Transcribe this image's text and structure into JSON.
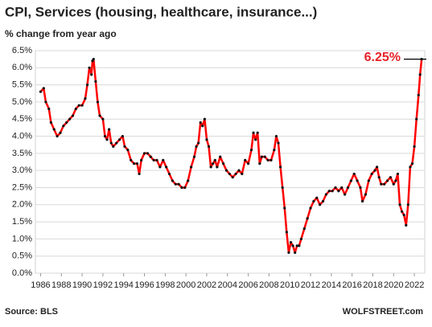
{
  "chart_data": {
    "type": "line",
    "title": "CPI, Services (housing, healthcare, insurance...)",
    "subtitle": "% change from year ago",
    "source": "Source: BLS",
    "watermark": "WOLFSTREET.com",
    "annotation": {
      "text": "6.25%",
      "value": 6.25
    },
    "xlim": [
      1985.5,
      2023
    ],
    "xticks": [
      1986,
      1988,
      1990,
      1992,
      1994,
      1996,
      1998,
      2000,
      2002,
      2004,
      2006,
      2008,
      2010,
      2012,
      2014,
      2016,
      2018,
      2020,
      2022
    ],
    "ylim": [
      0,
      6.5
    ],
    "yticks": [
      {
        "value": 0,
        "label": "0.0%"
      },
      {
        "value": 0.5,
        "label": "0.5%"
      },
      {
        "value": 1,
        "label": "1.0%"
      },
      {
        "value": 1.5,
        "label": "1.5%"
      },
      {
        "value": 2,
        "label": "2.0%"
      },
      {
        "value": 2.5,
        "label": "2.5%"
      },
      {
        "value": 3,
        "label": "3.0%"
      },
      {
        "value": 3.5,
        "label": "3.5%"
      },
      {
        "value": 4,
        "label": "4.0%"
      },
      {
        "value": 4.5,
        "label": "4.5%"
      },
      {
        "value": 5,
        "label": "5.0%"
      },
      {
        "value": 5.5,
        "label": "5.5%"
      },
      {
        "value": 6,
        "label": "6.0%"
      },
      {
        "value": 6.5,
        "label": "6.5%"
      }
    ],
    "grid": true,
    "color": "#ff0000",
    "marker_color": "#111111",
    "x": [
      1986.0,
      1986.3,
      1986.5,
      1986.8,
      1987.0,
      1987.3,
      1987.6,
      1987.9,
      1988.2,
      1988.5,
      1988.8,
      1989.1,
      1989.4,
      1989.7,
      1990.0,
      1990.3,
      1990.5,
      1990.7,
      1990.9,
      1991.0,
      1991.1,
      1991.3,
      1991.5,
      1991.7,
      1992.0,
      1992.2,
      1992.4,
      1992.6,
      1992.8,
      1993.0,
      1993.3,
      1993.6,
      1993.9,
      1994.1,
      1994.4,
      1994.7,
      1995.0,
      1995.3,
      1995.5,
      1995.7,
      1996.0,
      1996.3,
      1996.6,
      1996.9,
      1997.2,
      1997.5,
      1997.8,
      1998.1,
      1998.4,
      1998.7,
      1999.0,
      1999.3,
      1999.6,
      1999.9,
      2000.2,
      2000.5,
      2000.8,
      2001.0,
      2001.2,
      2001.4,
      2001.6,
      2001.8,
      2002.0,
      2002.2,
      2002.4,
      2002.6,
      2002.8,
      2003.0,
      2003.3,
      2003.6,
      2003.9,
      2004.2,
      2004.5,
      2004.8,
      2005.1,
      2005.4,
      2005.7,
      2006.0,
      2006.3,
      2006.5,
      2006.7,
      2006.9,
      2007.1,
      2007.3,
      2007.6,
      2007.9,
      2008.2,
      2008.5,
      2008.7,
      2008.9,
      2009.1,
      2009.3,
      2009.5,
      2009.7,
      2009.9,
      2010.1,
      2010.3,
      2010.5,
      2010.7,
      2010.9,
      2011.1,
      2011.4,
      2011.7,
      2012.0,
      2012.3,
      2012.6,
      2012.9,
      2013.2,
      2013.5,
      2013.8,
      2014.1,
      2014.4,
      2014.7,
      2015.0,
      2015.3,
      2015.6,
      2015.9,
      2016.2,
      2016.5,
      2016.8,
      2017.0,
      2017.3,
      2017.6,
      2017.9,
      2018.2,
      2018.4,
      2018.6,
      2018.8,
      2019.1,
      2019.4,
      2019.7,
      2020.0,
      2020.2,
      2020.4,
      2020.6,
      2020.8,
      2021.0,
      2021.2,
      2021.4,
      2021.6,
      2021.8,
      2022.0,
      2022.2,
      2022.4,
      2022.55,
      2022.7
    ],
    "values": [
      5.3,
      5.4,
      5.0,
      4.8,
      4.4,
      4.2,
      4.0,
      4.1,
      4.3,
      4.4,
      4.5,
      4.6,
      4.8,
      4.9,
      4.9,
      5.1,
      5.5,
      6.0,
      5.8,
      6.2,
      6.25,
      5.6,
      5.0,
      4.6,
      4.5,
      4.0,
      3.9,
      4.2,
      3.8,
      3.7,
      3.8,
      3.9,
      4.0,
      3.7,
      3.6,
      3.3,
      3.2,
      3.2,
      2.9,
      3.3,
      3.5,
      3.5,
      3.4,
      3.3,
      3.3,
      3.1,
      3.3,
      3.1,
      2.9,
      2.7,
      2.6,
      2.6,
      2.5,
      2.5,
      2.7,
      3.1,
      3.4,
      3.7,
      3.8,
      4.4,
      4.3,
      4.5,
      3.9,
      3.7,
      3.1,
      3.2,
      3.3,
      3.1,
      3.4,
      3.2,
      3.0,
      2.9,
      2.8,
      2.9,
      3.0,
      2.9,
      3.3,
      3.2,
      3.6,
      4.1,
      3.9,
      4.1,
      3.2,
      3.4,
      3.4,
      3.3,
      3.3,
      3.6,
      4.0,
      3.8,
      3.1,
      2.5,
      1.9,
      1.2,
      0.6,
      0.9,
      0.8,
      0.6,
      0.8,
      0.8,
      1.0,
      1.3,
      1.6,
      1.9,
      2.1,
      2.2,
      2.0,
      2.1,
      2.3,
      2.4,
      2.4,
      2.5,
      2.4,
      2.5,
      2.3,
      2.5,
      2.7,
      2.9,
      2.7,
      2.5,
      2.1,
      2.3,
      2.7,
      2.9,
      3.0,
      3.1,
      2.8,
      2.6,
      2.6,
      2.7,
      2.8,
      2.6,
      2.7,
      2.9,
      2.0,
      1.8,
      1.7,
      1.4,
      2.0,
      3.1,
      3.2,
      3.7,
      4.5,
      5.2,
      5.8,
      6.25
    ]
  }
}
